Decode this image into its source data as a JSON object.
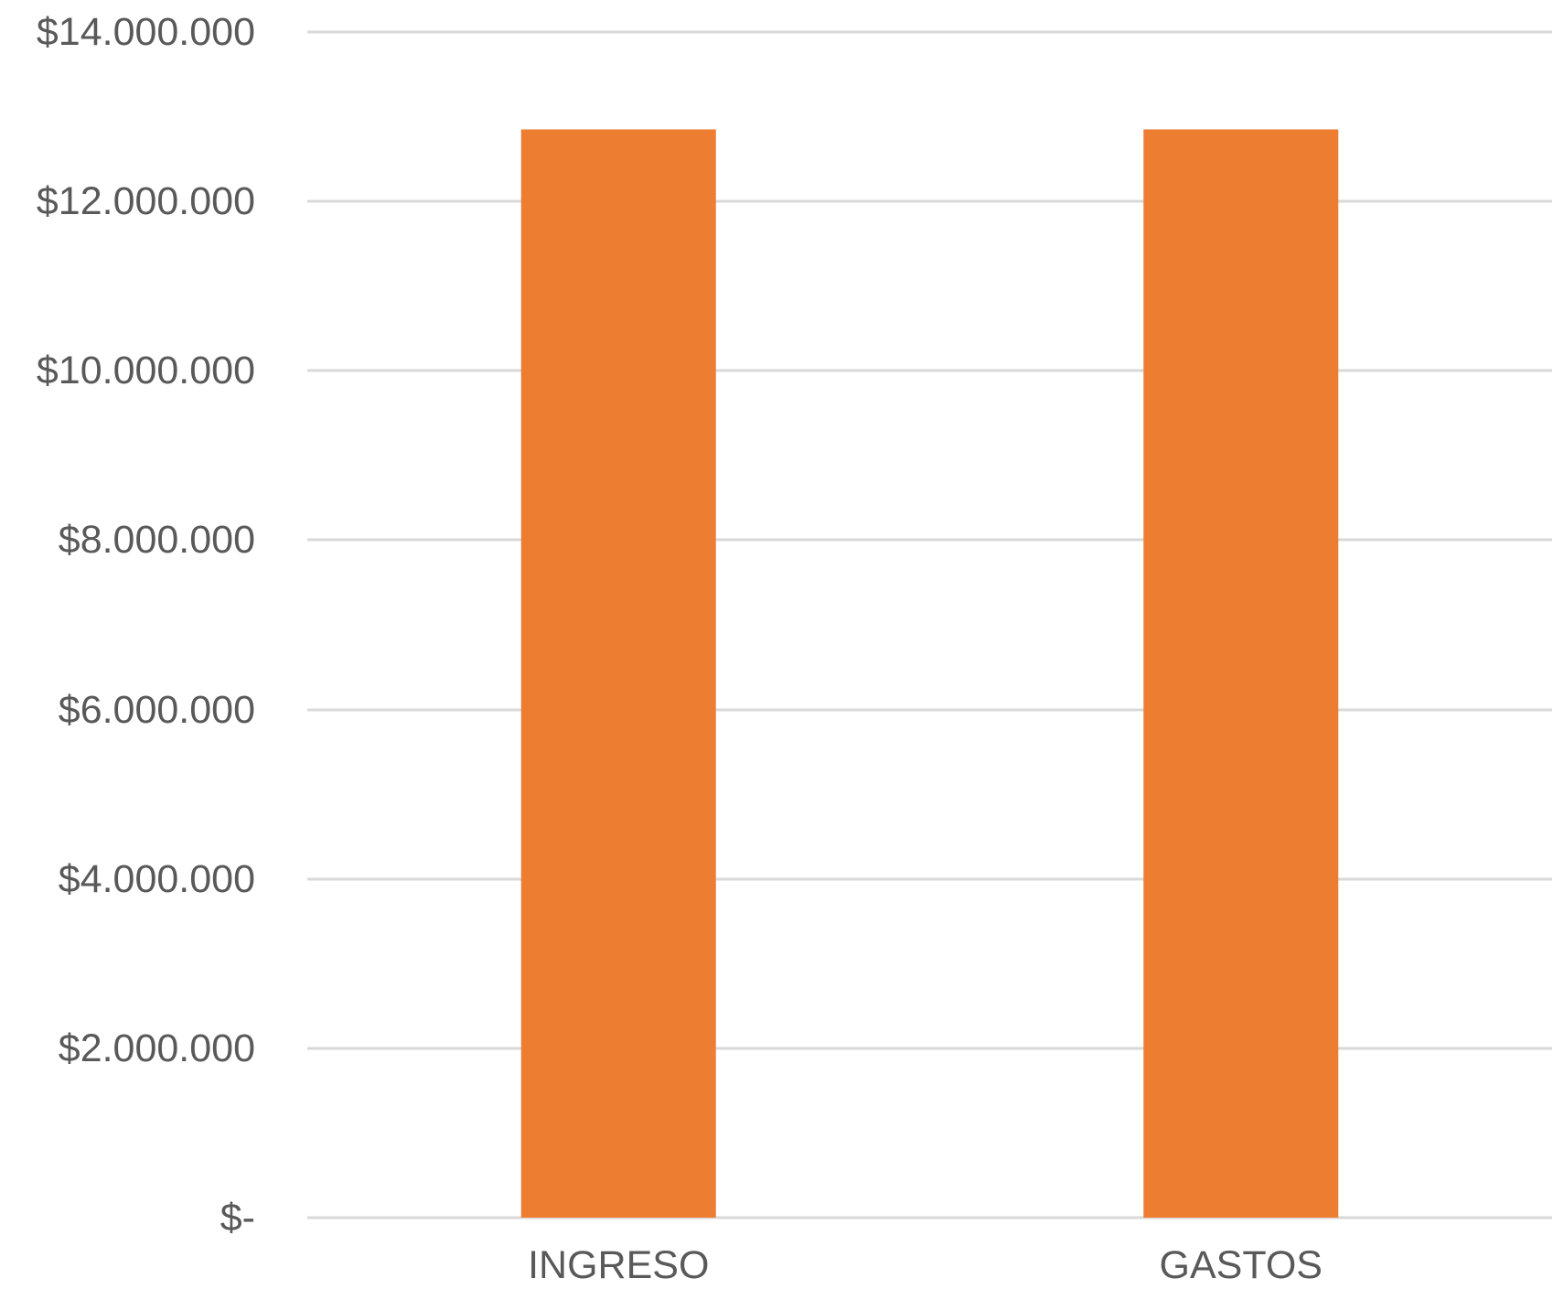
{
  "chart_data": {
    "type": "bar",
    "categories": [
      "INGRESO",
      "GASTOS"
    ],
    "values": [
      12850000,
      12850000
    ],
    "ylim": [
      0,
      14000000
    ],
    "yticks": [
      0,
      2000000,
      4000000,
      6000000,
      8000000,
      10000000,
      12000000,
      14000000
    ],
    "ytick_labels": [
      "$-",
      "$2.000.000",
      "$4.000.000",
      "$6.000.000",
      "$8.000.000",
      "$10.000.000",
      "$12.000.000",
      "$14.000.000"
    ],
    "grid": true,
    "legend": "none",
    "bar_color": "#ED7D31",
    "grid_color": "#D9D9D9",
    "text_color": "#595959"
  }
}
